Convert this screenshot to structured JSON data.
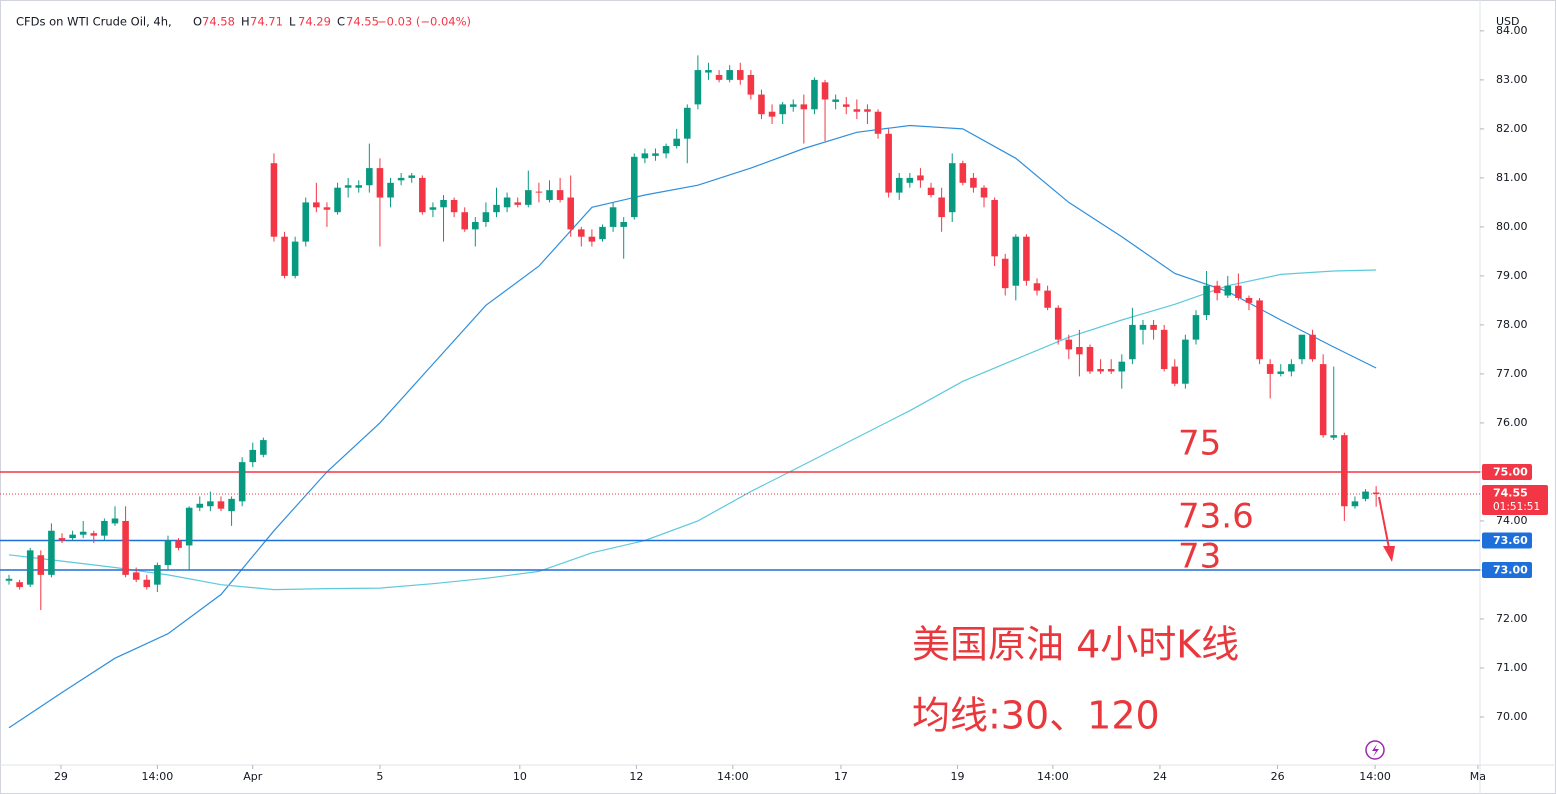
{
  "chart_data": {
    "type": "candlestick",
    "title": "CFDs on WTI Crude Oil, 4h,",
    "ohlc": [
      {
        "label": "O",
        "value": 74.58
      },
      {
        "label": "H",
        "value": 74.71
      },
      {
        "label": "L",
        "value": 74.29
      },
      {
        "label": "C",
        "value": 74.55
      }
    ],
    "change": "−0.03 (−0.04%)",
    "currency": "USD",
    "up_color": "#089981",
    "down_color": "#f23645",
    "candles": [
      [
        72.78,
        72.9,
        72.7,
        72.82
      ],
      [
        72.75,
        72.8,
        72.6,
        72.65
      ],
      [
        72.7,
        73.45,
        72.65,
        73.4
      ],
      [
        73.3,
        73.4,
        72.18,
        72.9
      ],
      [
        72.9,
        73.95,
        72.85,
        73.8
      ],
      [
        73.65,
        73.75,
        73.55,
        73.6
      ],
      [
        73.65,
        73.8,
        73.6,
        73.72
      ],
      [
        73.72,
        74.0,
        73.65,
        73.78
      ],
      [
        73.75,
        73.8,
        73.55,
        73.7
      ],
      [
        73.7,
        74.05,
        73.6,
        74.0
      ],
      [
        73.95,
        74.3,
        73.9,
        74.05
      ],
      [
        74.0,
        74.3,
        72.85,
        72.9
      ],
      [
        72.95,
        73.05,
        72.75,
        72.8
      ],
      [
        72.8,
        72.9,
        72.6,
        72.65
      ],
      [
        72.7,
        73.15,
        72.55,
        73.1
      ],
      [
        73.1,
        73.7,
        73.0,
        73.6
      ],
      [
        73.6,
        73.65,
        73.4,
        73.45
      ],
      [
        73.5,
        74.3,
        73.0,
        74.27
      ],
      [
        74.27,
        74.5,
        74.2,
        74.35
      ],
      [
        74.3,
        74.6,
        74.2,
        74.4
      ],
      [
        74.4,
        74.5,
        74.2,
        74.25
      ],
      [
        74.2,
        74.5,
        73.9,
        74.45
      ],
      [
        74.4,
        75.3,
        74.3,
        75.2
      ],
      [
        75.2,
        75.6,
        75.1,
        75.45
      ],
      [
        75.35,
        75.7,
        75.3,
        75.65
      ],
      [
        81.3,
        81.5,
        79.7,
        79.8
      ],
      [
        79.8,
        79.9,
        78.95,
        79.0
      ],
      [
        79.0,
        79.8,
        78.95,
        79.7
      ],
      [
        79.7,
        80.6,
        79.6,
        80.5
      ],
      [
        80.5,
        80.9,
        80.3,
        80.4
      ],
      [
        80.4,
        80.5,
        80.0,
        80.35
      ],
      [
        80.3,
        80.9,
        80.25,
        80.8
      ],
      [
        80.8,
        81.0,
        80.6,
        80.85
      ],
      [
        80.8,
        80.95,
        80.7,
        80.85
      ],
      [
        80.85,
        81.7,
        80.7,
        81.2
      ],
      [
        81.2,
        81.4,
        79.6,
        80.6
      ],
      [
        80.6,
        81.0,
        80.4,
        80.9
      ],
      [
        80.95,
        81.1,
        80.85,
        81.0
      ],
      [
        81.0,
        81.1,
        80.9,
        81.05
      ],
      [
        81.0,
        81.05,
        80.25,
        80.3
      ],
      [
        80.35,
        80.5,
        80.2,
        80.4
      ],
      [
        80.4,
        80.65,
        79.7,
        80.55
      ],
      [
        80.55,
        80.6,
        80.2,
        80.3
      ],
      [
        80.3,
        80.4,
        79.9,
        79.95
      ],
      [
        79.95,
        80.2,
        79.6,
        80.1
      ],
      [
        80.1,
        80.5,
        80.0,
        80.3
      ],
      [
        80.3,
        80.8,
        80.2,
        80.45
      ],
      [
        80.4,
        80.7,
        80.3,
        80.6
      ],
      [
        80.5,
        80.6,
        80.4,
        80.45
      ],
      [
        80.45,
        81.15,
        80.4,
        80.75
      ],
      [
        80.72,
        80.9,
        80.5,
        80.7
      ],
      [
        80.55,
        80.95,
        80.5,
        80.75
      ],
      [
        80.75,
        81.0,
        80.5,
        80.55
      ],
      [
        80.6,
        81.05,
        79.8,
        79.95
      ],
      [
        79.95,
        80.0,
        79.6,
        79.8
      ],
      [
        79.8,
        79.95,
        79.6,
        79.7
      ],
      [
        79.75,
        80.05,
        79.7,
        80.0
      ],
      [
        80.0,
        80.5,
        79.9,
        80.4
      ],
      [
        80.0,
        80.2,
        79.35,
        80.1
      ],
      [
        80.2,
        81.5,
        80.15,
        81.43
      ],
      [
        81.4,
        81.6,
        81.3,
        81.5
      ],
      [
        81.45,
        81.6,
        81.35,
        81.5
      ],
      [
        81.5,
        81.7,
        81.4,
        81.65
      ],
      [
        81.65,
        82.0,
        81.6,
        81.8
      ],
      [
        81.8,
        82.5,
        81.3,
        82.43
      ],
      [
        82.5,
        83.5,
        82.4,
        83.2
      ],
      [
        83.15,
        83.35,
        83.0,
        83.2
      ],
      [
        83.1,
        83.2,
        82.95,
        83.0
      ],
      [
        83.0,
        83.3,
        82.95,
        83.2
      ],
      [
        83.2,
        83.35,
        82.9,
        83.0
      ],
      [
        83.1,
        83.2,
        82.6,
        82.7
      ],
      [
        82.7,
        82.8,
        82.2,
        82.3
      ],
      [
        82.35,
        82.5,
        82.1,
        82.25
      ],
      [
        82.3,
        82.55,
        82.1,
        82.5
      ],
      [
        82.45,
        82.6,
        82.35,
        82.5
      ],
      [
        82.5,
        82.7,
        81.7,
        82.4
      ],
      [
        82.4,
        83.05,
        82.3,
        83.0
      ],
      [
        82.95,
        83.0,
        81.75,
        82.6
      ],
      [
        82.55,
        82.7,
        82.4,
        82.6
      ],
      [
        82.5,
        82.65,
        82.3,
        82.45
      ],
      [
        82.4,
        82.6,
        82.2,
        82.35
      ],
      [
        82.4,
        82.5,
        82.1,
        82.35
      ],
      [
        82.35,
        82.4,
        81.8,
        81.9
      ],
      [
        81.9,
        82.0,
        80.6,
        80.7
      ],
      [
        80.7,
        81.1,
        80.55,
        81.0
      ],
      [
        80.9,
        81.1,
        80.8,
        81.0
      ],
      [
        81.05,
        81.2,
        80.8,
        80.95
      ],
      [
        80.8,
        80.9,
        80.6,
        80.65
      ],
      [
        80.6,
        80.8,
        79.9,
        80.2
      ],
      [
        80.3,
        81.5,
        80.1,
        81.3
      ],
      [
        81.3,
        81.35,
        80.85,
        80.9
      ],
      [
        81.0,
        81.1,
        80.7,
        80.8
      ],
      [
        80.8,
        80.85,
        80.4,
        80.6
      ],
      [
        80.55,
        80.6,
        79.2,
        79.4
      ],
      [
        79.35,
        79.45,
        78.6,
        78.75
      ],
      [
        78.8,
        79.85,
        78.5,
        79.8
      ],
      [
        79.8,
        79.85,
        78.8,
        78.9
      ],
      [
        78.85,
        78.95,
        78.6,
        78.7
      ],
      [
        78.7,
        78.8,
        78.3,
        78.35
      ],
      [
        78.35,
        78.4,
        77.6,
        77.7
      ],
      [
        77.7,
        77.8,
        77.3,
        77.5
      ],
      [
        77.55,
        77.9,
        76.95,
        77.4
      ],
      [
        77.55,
        77.6,
        77.0,
        77.05
      ],
      [
        77.1,
        77.3,
        77.0,
        77.05
      ],
      [
        77.1,
        77.3,
        77.0,
        77.05
      ],
      [
        77.05,
        77.4,
        76.7,
        77.25
      ],
      [
        77.3,
        78.35,
        77.2,
        78.0
      ],
      [
        77.9,
        78.1,
        77.6,
        78.0
      ],
      [
        78.0,
        78.1,
        77.7,
        77.9
      ],
      [
        77.9,
        78.0,
        77.05,
        77.1
      ],
      [
        77.15,
        77.3,
        76.75,
        76.8
      ],
      [
        76.8,
        77.8,
        76.7,
        77.7
      ],
      [
        77.7,
        78.3,
        77.6,
        78.2
      ],
      [
        78.2,
        79.1,
        78.1,
        78.8
      ],
      [
        78.8,
        78.9,
        78.5,
        78.65
      ],
      [
        78.6,
        79.0,
        78.55,
        78.8
      ],
      [
        78.8,
        79.05,
        78.5,
        78.55
      ],
      [
        78.55,
        78.6,
        78.3,
        78.45
      ],
      [
        78.5,
        78.55,
        77.2,
        77.3
      ],
      [
        77.2,
        77.3,
        76.5,
        77.0
      ],
      [
        77.0,
        77.2,
        76.95,
        77.05
      ],
      [
        77.05,
        77.3,
        76.95,
        77.2
      ],
      [
        77.3,
        77.8,
        77.2,
        77.8
      ],
      [
        77.8,
        77.9,
        77.25,
        77.3
      ],
      [
        77.2,
        77.4,
        75.7,
        75.75
      ],
      [
        75.7,
        77.15,
        75.65,
        75.75
      ],
      [
        75.75,
        75.8,
        74.0,
        74.3
      ],
      [
        74.3,
        74.5,
        74.25,
        74.4
      ],
      [
        74.45,
        74.65,
        74.4,
        74.6
      ],
      [
        74.58,
        74.71,
        74.29,
        74.55
      ]
    ],
    "series": [
      {
        "color": "#2f8fdd",
        "x": [
          0,
          5,
          10,
          15,
          20,
          25,
          30,
          35,
          40,
          45,
          50,
          55,
          60,
          65,
          70,
          75,
          80,
          85,
          90,
          95,
          100,
          105,
          110,
          115,
          120,
          125,
          129
        ],
        "values": [
          69.78,
          70.5,
          71.2,
          71.7,
          72.5,
          73.8,
          75.0,
          76.0,
          77.2,
          78.4,
          79.2,
          80.4,
          80.65,
          80.85,
          81.2,
          81.6,
          81.93,
          82.07,
          82.0,
          81.4,
          80.5,
          79.8,
          79.05,
          78.68,
          78.1,
          77.55,
          77.12
        ]
      },
      {
        "color": "#5cc9dd",
        "x": [
          0,
          5,
          10,
          15,
          20,
          25,
          30,
          35,
          40,
          45,
          50,
          55,
          60,
          65,
          70,
          75,
          80,
          85,
          90,
          95,
          100,
          105,
          110,
          115,
          120,
          125,
          129
        ],
        "values": [
          73.31,
          73.18,
          73.05,
          72.9,
          72.7,
          72.6,
          72.62,
          72.63,
          72.72,
          72.83,
          72.97,
          73.35,
          73.6,
          74.0,
          74.6,
          75.15,
          75.7,
          76.25,
          76.85,
          77.3,
          77.75,
          78.1,
          78.42,
          78.8,
          79.03,
          79.1,
          79.12
        ]
      }
    ],
    "xlim": [
      -0.85,
      138.8
    ],
    "xticks": [
      {
        "value": 4.9,
        "label": "29"
      },
      {
        "value": 14,
        "label": "14:00"
      },
      {
        "value": 23,
        "label": "Apr"
      },
      {
        "value": 35,
        "label": "5"
      },
      {
        "value": 48.2,
        "label": "10"
      },
      {
        "value": 59.2,
        "label": "12"
      },
      {
        "value": 68.3,
        "label": "14:00"
      },
      {
        "value": 78.5,
        "label": "17"
      },
      {
        "value": 89.5,
        "label": "19"
      },
      {
        "value": 98.5,
        "label": "14:00"
      },
      {
        "value": 108.6,
        "label": "24"
      },
      {
        "value": 119.7,
        "label": "26"
      },
      {
        "value": 128.9,
        "label": "14:00"
      },
      {
        "value": 138.6,
        "label": "Ma"
      }
    ],
    "ylim": [
      69.02,
      84.63
    ],
    "yticks": [
      {
        "value": 70,
        "label": "70.00"
      },
      {
        "value": 71,
        "label": "71.00"
      },
      {
        "value": 72,
        "label": "72.00"
      },
      {
        "value": 73,
        "label": "73.00"
      },
      {
        "value": 74,
        "label": "74.00"
      },
      {
        "value": 75,
        "label": "75.00"
      },
      {
        "value": 76,
        "label": "76.00"
      },
      {
        "value": 77,
        "label": "77.00"
      },
      {
        "value": 78,
        "label": "78.00"
      },
      {
        "value": 79,
        "label": "79.00"
      },
      {
        "value": 80,
        "label": "80.00"
      },
      {
        "value": 81,
        "label": "81.00"
      },
      {
        "value": 82,
        "label": "82.00"
      },
      {
        "value": 83,
        "label": "83.00"
      },
      {
        "value": 84,
        "label": "84.00"
      }
    ],
    "grid": false,
    "price_lines": [
      {
        "value": 75,
        "label": "75.00",
        "color": "#f23645"
      },
      {
        "value": 73.6,
        "label": "73.60",
        "color": "#1e6fd9"
      },
      {
        "value": 73,
        "label": "73.00",
        "color": "#1e6fd9"
      }
    ],
    "last_price": {
      "value": 74.55,
      "label": "74.55",
      "countdown": "01:51:51",
      "color": "#f23645"
    },
    "annotations": [
      "75",
      "73.6",
      "73",
      "美国原油 4小时K线",
      "均线:30、120"
    ]
  }
}
